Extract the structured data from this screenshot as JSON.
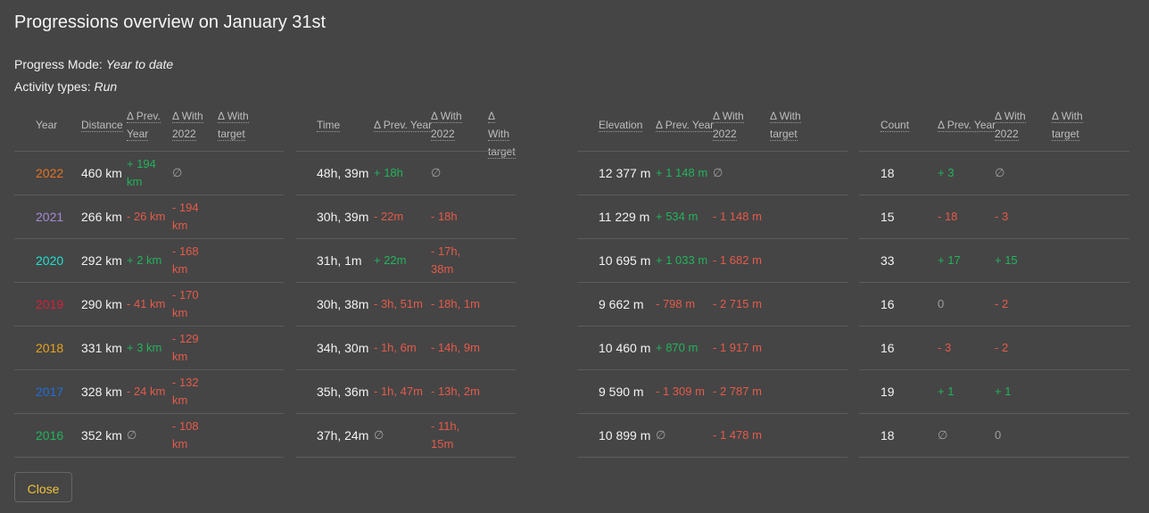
{
  "title": "Progressions overview on January 31st",
  "progress_mode_label": "Progress Mode:",
  "progress_mode_value": "Year to date",
  "activity_types_label": "Activity types:",
  "activity_types_value": "Run",
  "headers": {
    "year": "Year",
    "distance": "Distance",
    "time": "Time",
    "elevation": "Elevation",
    "count": "Count",
    "prev_year": [
      "Δ Prev.",
      "Year"
    ],
    "prev_year_inline": "Δ Prev. Year",
    "with_2022": [
      "Δ With",
      "2022"
    ],
    "with_target": [
      "Δ With",
      "target"
    ]
  },
  "colors": {
    "positive": "#22b45c",
    "negative": "#e55a4a",
    "neutral": "#9e9e9e",
    "close_button_text": "#f0c23a"
  },
  "rows": [
    {
      "year": "2022",
      "year_color": "#e8731f",
      "distance": {
        "value": "460 km",
        "prev": "+ 194 km",
        "prev_t": "pos",
        "with": "∅",
        "with_t": "nul"
      },
      "time": {
        "value": "48h, 39m",
        "prev": "+ 18h",
        "prev_t": "pos",
        "with": "∅",
        "with_t": "nul"
      },
      "elevation": {
        "value": "12 377 m",
        "prev": "+ 1 148 m",
        "prev_t": "pos",
        "with": "∅",
        "with_t": "nul"
      },
      "count": {
        "value": "18",
        "prev": "+ 3",
        "prev_t": "pos",
        "with": "∅",
        "with_t": "nul"
      }
    },
    {
      "year": "2021",
      "year_color": "#a58ad6",
      "distance": {
        "value": "266 km",
        "prev": "- 26 km",
        "prev_t": "neg",
        "with": "- 194 km",
        "with_t": "neg"
      },
      "time": {
        "value": "30h, 39m",
        "prev": "- 22m",
        "prev_t": "neg",
        "with": "- 18h",
        "with_t": "neg"
      },
      "elevation": {
        "value": "11 229 m",
        "prev": "+ 534 m",
        "prev_t": "pos",
        "with": "- 1 148 m",
        "with_t": "neg"
      },
      "count": {
        "value": "15",
        "prev": "- 18",
        "prev_t": "neg",
        "with": "- 3",
        "with_t": "neg"
      }
    },
    {
      "year": "2020",
      "year_color": "#1ee0d2",
      "distance": {
        "value": "292 km",
        "prev": "+ 2 km",
        "prev_t": "pos",
        "with": "- 168 km",
        "with_t": "neg"
      },
      "time": {
        "value": "31h, 1m",
        "prev": "+ 22m",
        "prev_t": "pos",
        "with": "- 17h, 38m",
        "with_t": "neg"
      },
      "elevation": {
        "value": "10 695 m",
        "prev": "+ 1 033 m",
        "prev_t": "pos",
        "with": "- 1 682 m",
        "with_t": "neg"
      },
      "count": {
        "value": "33",
        "prev": "+ 17",
        "prev_t": "pos",
        "with": "+ 15",
        "with_t": "pos"
      }
    },
    {
      "year": "2019",
      "year_color": "#d81f3a",
      "distance": {
        "value": "290 km",
        "prev": "- 41 km",
        "prev_t": "neg",
        "with": "- 170 km",
        "with_t": "neg"
      },
      "time": {
        "value": "30h, 38m",
        "prev": "- 3h, 51m",
        "prev_t": "neg",
        "with": "- 18h, 1m",
        "with_t": "neg"
      },
      "elevation": {
        "value": "9 662 m",
        "prev": "- 798 m",
        "prev_t": "neg",
        "with": "- 2 715 m",
        "with_t": "neg"
      },
      "count": {
        "value": "16",
        "prev": "0",
        "prev_t": "nul",
        "with": "- 2",
        "with_t": "neg"
      }
    },
    {
      "year": "2018",
      "year_color": "#e8a21f",
      "distance": {
        "value": "331 km",
        "prev": "+ 3 km",
        "prev_t": "pos",
        "with": "- 129 km",
        "with_t": "neg"
      },
      "time": {
        "value": "34h, 30m",
        "prev": "- 1h, 6m",
        "prev_t": "neg",
        "with": "- 14h, 9m",
        "with_t": "neg"
      },
      "elevation": {
        "value": "10 460 m",
        "prev": "+ 870 m",
        "prev_t": "pos",
        "with": "- 1 917 m",
        "with_t": "neg"
      },
      "count": {
        "value": "16",
        "prev": "- 3",
        "prev_t": "neg",
        "with": "- 2",
        "with_t": "neg"
      }
    },
    {
      "year": "2017",
      "year_color": "#1f6fd8",
      "distance": {
        "value": "328 km",
        "prev": "- 24 km",
        "prev_t": "neg",
        "with": "- 132 km",
        "with_t": "neg"
      },
      "time": {
        "value": "35h, 36m",
        "prev": "- 1h, 47m",
        "prev_t": "neg",
        "with": "- 13h, 2m",
        "with_t": "neg"
      },
      "elevation": {
        "value": "9 590 m",
        "prev": "- 1 309 m",
        "prev_t": "neg",
        "with": "- 2 787 m",
        "with_t": "neg"
      },
      "count": {
        "value": "19",
        "prev": "+ 1",
        "prev_t": "pos",
        "with": "+ 1",
        "with_t": "pos"
      }
    },
    {
      "year": "2016",
      "year_color": "#22b45c",
      "distance": {
        "value": "352 km",
        "prev": "∅",
        "prev_t": "nul",
        "with": "- 108 km",
        "with_t": "neg"
      },
      "time": {
        "value": "37h, 24m",
        "prev": "∅",
        "prev_t": "nul",
        "with": "- 11h, 15m",
        "with_t": "neg"
      },
      "elevation": {
        "value": "10 899 m",
        "prev": "∅",
        "prev_t": "nul",
        "with": "- 1 478 m",
        "with_t": "neg"
      },
      "count": {
        "value": "18",
        "prev": "∅",
        "prev_t": "nul",
        "with": "0",
        "with_t": "nul"
      }
    }
  ],
  "close_label": "Close"
}
